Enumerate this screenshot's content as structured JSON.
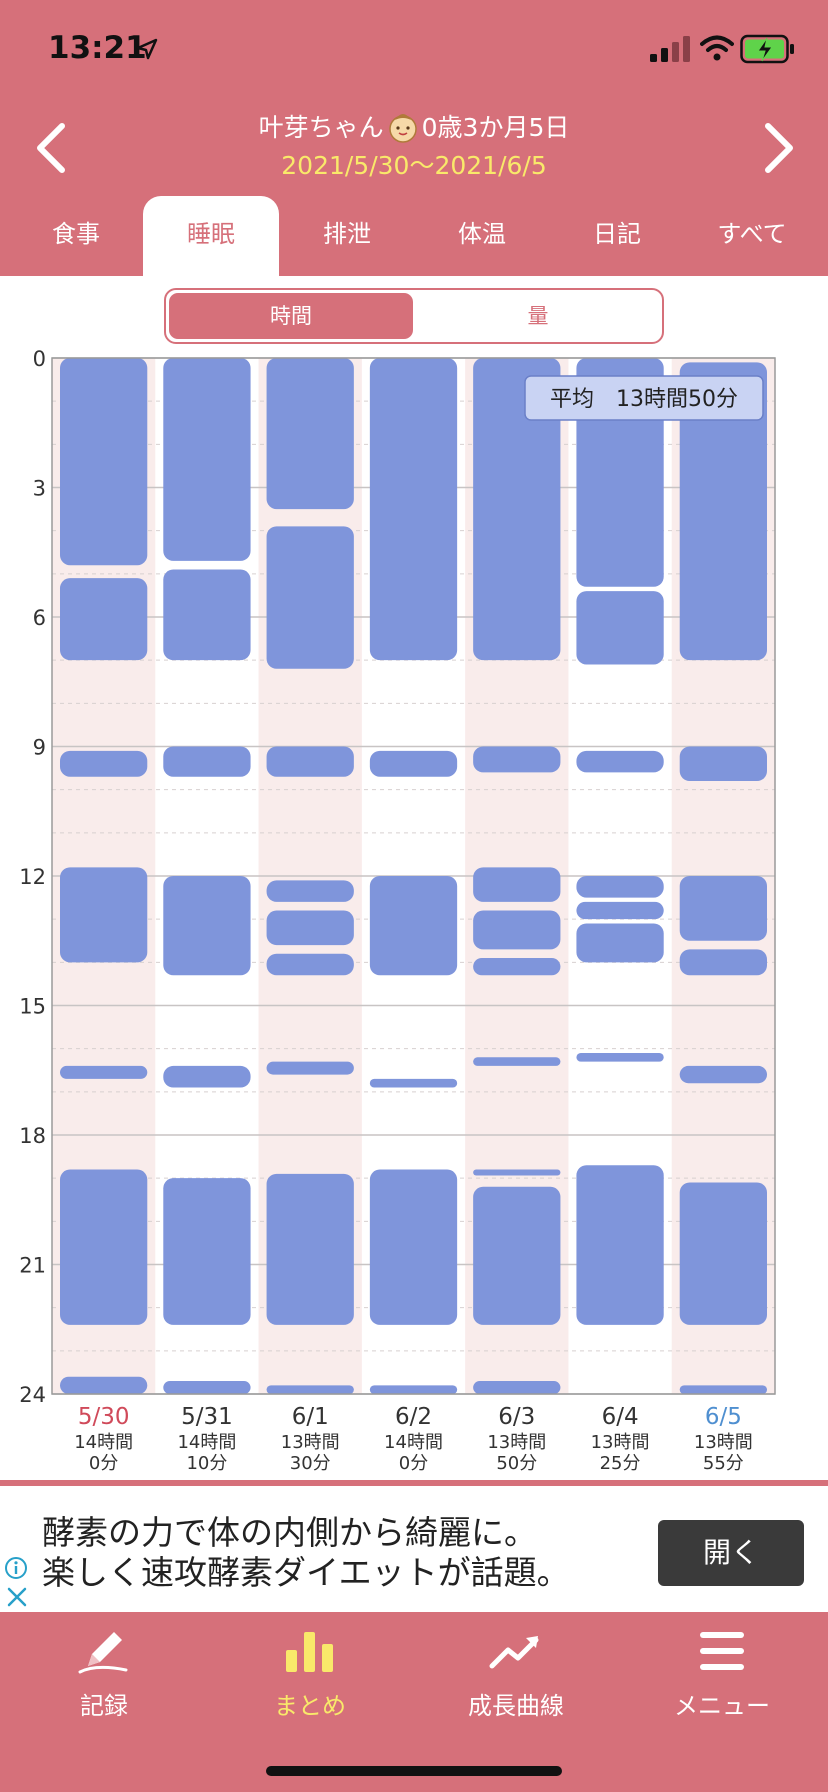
{
  "status_bar": {
    "time": "13:21"
  },
  "header": {
    "child_name": "叶芽ちゃん",
    "child_age": "0歳3か月5日",
    "date_range": "2021/5/30〜2021/6/5"
  },
  "tabs": [
    {
      "label": "食事"
    },
    {
      "label": "睡眠",
      "active": true
    },
    {
      "label": "排泄"
    },
    {
      "label": "体温"
    },
    {
      "label": "日記"
    },
    {
      "label": "すべて"
    }
  ],
  "toggle": {
    "time_label": "時間",
    "amount_label": "量",
    "selected": "時間"
  },
  "chart_data": {
    "type": "bar",
    "orientation": "vertical-timeline",
    "y_range": [
      0,
      24
    ],
    "y_ticks": [
      "0",
      "3",
      "6",
      "9",
      "12",
      "15",
      "18",
      "21",
      "24"
    ],
    "average_label": "平均　13時間50分",
    "colors": {
      "sleep": "#7f95db",
      "band_shaded": "#f9eceb",
      "weekend_sat": "#d04a5a",
      "weekend_sun": "#4f8fd0"
    },
    "days": [
      {
        "date": "5/30",
        "hours": "14時間",
        "minutes": "0分",
        "sleeps": [
          [
            0,
            4.8
          ],
          [
            5.1,
            7.0
          ],
          [
            9.1,
            9.7
          ],
          [
            11.8,
            14.0
          ],
          [
            16.4,
            16.7
          ],
          [
            18.8,
            22.4
          ],
          [
            23.6,
            24
          ]
        ]
      },
      {
        "date": "5/31",
        "hours": "14時間",
        "minutes": "10分",
        "sleeps": [
          [
            0,
            4.7
          ],
          [
            4.9,
            7.0
          ],
          [
            9.0,
            9.7
          ],
          [
            12.0,
            14.3
          ],
          [
            16.4,
            16.9
          ],
          [
            19.0,
            22.4
          ],
          [
            23.7,
            24
          ]
        ]
      },
      {
        "date": "6/1",
        "hours": "13時間",
        "minutes": "30分",
        "sleeps": [
          [
            0,
            3.5
          ],
          [
            3.9,
            7.2
          ],
          [
            9.0,
            9.7
          ],
          [
            12.1,
            12.6
          ],
          [
            12.8,
            13.6
          ],
          [
            13.8,
            14.3
          ],
          [
            16.3,
            16.6
          ],
          [
            18.9,
            22.4
          ],
          [
            23.8,
            24
          ]
        ]
      },
      {
        "date": "6/2",
        "hours": "14時間",
        "minutes": "0分",
        "sleeps": [
          [
            0,
            7.0
          ],
          [
            9.1,
            9.7
          ],
          [
            12.0,
            14.3
          ],
          [
            16.7,
            16.9
          ],
          [
            18.8,
            22.4
          ],
          [
            23.8,
            24
          ]
        ]
      },
      {
        "date": "6/3",
        "hours": "13時間",
        "minutes": "50分",
        "sleeps": [
          [
            0,
            7.0
          ],
          [
            9.0,
            9.6
          ],
          [
            11.8,
            12.6
          ],
          [
            12.8,
            13.7
          ],
          [
            13.9,
            14.3
          ],
          [
            16.2,
            16.4
          ],
          [
            18.8,
            18.9
          ],
          [
            19.2,
            22.4
          ],
          [
            23.7,
            24
          ]
        ]
      },
      {
        "date": "6/4",
        "hours": "13時間",
        "minutes": "25分",
        "sleeps": [
          [
            0,
            5.3
          ],
          [
            5.4,
            7.1
          ],
          [
            9.1,
            9.6
          ],
          [
            12.0,
            12.5
          ],
          [
            12.6,
            13.0
          ],
          [
            13.1,
            14.0
          ],
          [
            16.1,
            16.3
          ],
          [
            18.7,
            22.4
          ]
        ]
      },
      {
        "date": "6/5",
        "hours": "13時間",
        "minutes": "55分",
        "sleeps": [
          [
            0.1,
            7.0
          ],
          [
            9.0,
            9.8
          ],
          [
            12.0,
            13.5
          ],
          [
            13.7,
            14.3
          ],
          [
            16.4,
            16.8
          ],
          [
            19.1,
            22.4
          ],
          [
            23.8,
            24
          ]
        ]
      }
    ]
  },
  "ad": {
    "line1": "酵素の力で体の内側から綺麗に。",
    "line2": "楽しく速攻酵素ダイエットが話題。",
    "button_label": "開く"
  },
  "bottom_nav": [
    {
      "label": "記録",
      "icon": "pencil-icon"
    },
    {
      "label": "まとめ",
      "icon": "bar-chart-icon",
      "active": true
    },
    {
      "label": "成長曲線",
      "icon": "growth-line-icon"
    },
    {
      "label": "メニュー",
      "icon": "menu-icon"
    }
  ]
}
